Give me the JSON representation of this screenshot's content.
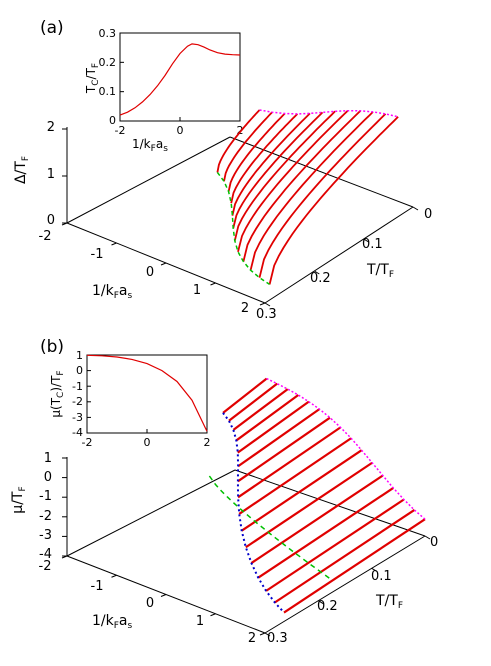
{
  "panels": {
    "a": {
      "label": "(a)",
      "inset": {
        "ylabel": {
          "main": "T",
          "sub": "C",
          "rest": "/T",
          "sub2": "F"
        },
        "xlabel": {
          "main": "1/k",
          "sub": "F",
          "rest": "a",
          "sub2": "s"
        },
        "x_ticks": [
          "-2",
          "0",
          "2"
        ],
        "y_ticks": [
          "0",
          "0.1",
          "0.2",
          "0.3"
        ]
      },
      "z_label": {
        "main": "Δ/T",
        "sub": "F"
      },
      "z_ticks": [
        "0",
        "1",
        "2"
      ],
      "x_label": {
        "main": "1/k",
        "sub": "F",
        "rest": "a",
        "sub2": "s"
      },
      "x_ticks": [
        "-2",
        "-1",
        "0",
        "1",
        "2"
      ],
      "t_label": {
        "main": "T/T",
        "sub": "F"
      },
      "t_ticks": [
        "0",
        "0.1",
        "0.2",
        "0.3"
      ]
    },
    "b": {
      "label": "(b)",
      "inset": {
        "ylabel": {
          "main": "μ(T",
          "sub": "C",
          "rest": ")/T",
          "sub2": "F"
        },
        "x_ticks": [
          "-2",
          "0",
          "2"
        ],
        "y_ticks": [
          "1",
          "0",
          "-1",
          "-2",
          "-3",
          "-4"
        ]
      },
      "z_label": {
        "main": "μ/T",
        "sub": "F"
      },
      "z_ticks": [
        "1",
        "0",
        "-1",
        "-2",
        "-3",
        "-4"
      ],
      "x_label": {
        "main": "1/k",
        "sub": "F",
        "rest": "a",
        "sub2": "s"
      },
      "x_ticks": [
        "-2",
        "-1",
        "0",
        "1",
        "2"
      ],
      "t_label": {
        "main": "T/T",
        "sub": "F"
      },
      "t_ticks": [
        "0",
        "0.1",
        "0.2",
        "0.3"
      ]
    }
  },
  "chart_data": [
    {
      "type": "line",
      "panel": "a-inset",
      "xlabel": "1/kFas",
      "ylabel": "TC/TF",
      "xlim": [
        -2,
        2
      ],
      "ylim": [
        0,
        0.3
      ],
      "series": [
        {
          "color": "#e00000",
          "x": [
            -2,
            -1.75,
            -1.5,
            -1.25,
            -1,
            -0.75,
            -0.5,
            -0.25,
            0,
            0.25,
            0.4,
            0.6,
            0.8,
            1,
            1.25,
            1.5,
            1.75,
            2
          ],
          "y": [
            0.02,
            0.03,
            0.045,
            0.065,
            0.09,
            0.12,
            0.155,
            0.195,
            0.23,
            0.255,
            0.263,
            0.26,
            0.252,
            0.242,
            0.233,
            0.228,
            0.226,
            0.225
          ]
        }
      ]
    },
    {
      "type": "line",
      "panel": "b-inset",
      "ylabel": "μ(TC)/TF",
      "xlim": [
        -2,
        2
      ],
      "ylim": [
        -4,
        1
      ],
      "series": [
        {
          "color": "#e00000",
          "x": [
            -2,
            -1.5,
            -1,
            -0.5,
            0,
            0.5,
            1,
            1.5,
            2
          ],
          "y": [
            0.98,
            0.95,
            0.87,
            0.72,
            0.45,
            0.0,
            -0.7,
            -1.9,
            -3.9
          ]
        }
      ]
    },
    {
      "type": "line",
      "panel": "a-main",
      "x_axis": "1/kFas",
      "t_axis": "T/TF",
      "z_axis": "Δ/TF",
      "xlim": [
        -2,
        2
      ],
      "tlim": [
        0,
        0.3
      ],
      "zlim": [
        0,
        2
      ],
      "series_style": {
        "gap_curves": "#e00000",
        "zero_T_boundary": "#ff00ff",
        "critical_line": "#00c000"
      }
    },
    {
      "type": "line",
      "panel": "b-main",
      "x_axis": "1/kFas",
      "t_axis": "T/TF",
      "z_axis": "μ/TF",
      "xlim": [
        -2,
        2
      ],
      "tlim": [
        0,
        0.3
      ],
      "zlim": [
        -4,
        1
      ],
      "series_style": {
        "mu_curves": "#e00000",
        "zero_T_boundary": "#ff00ff",
        "critical_line": "#0000cc",
        "green_dashed": "#00c000"
      }
    }
  ]
}
